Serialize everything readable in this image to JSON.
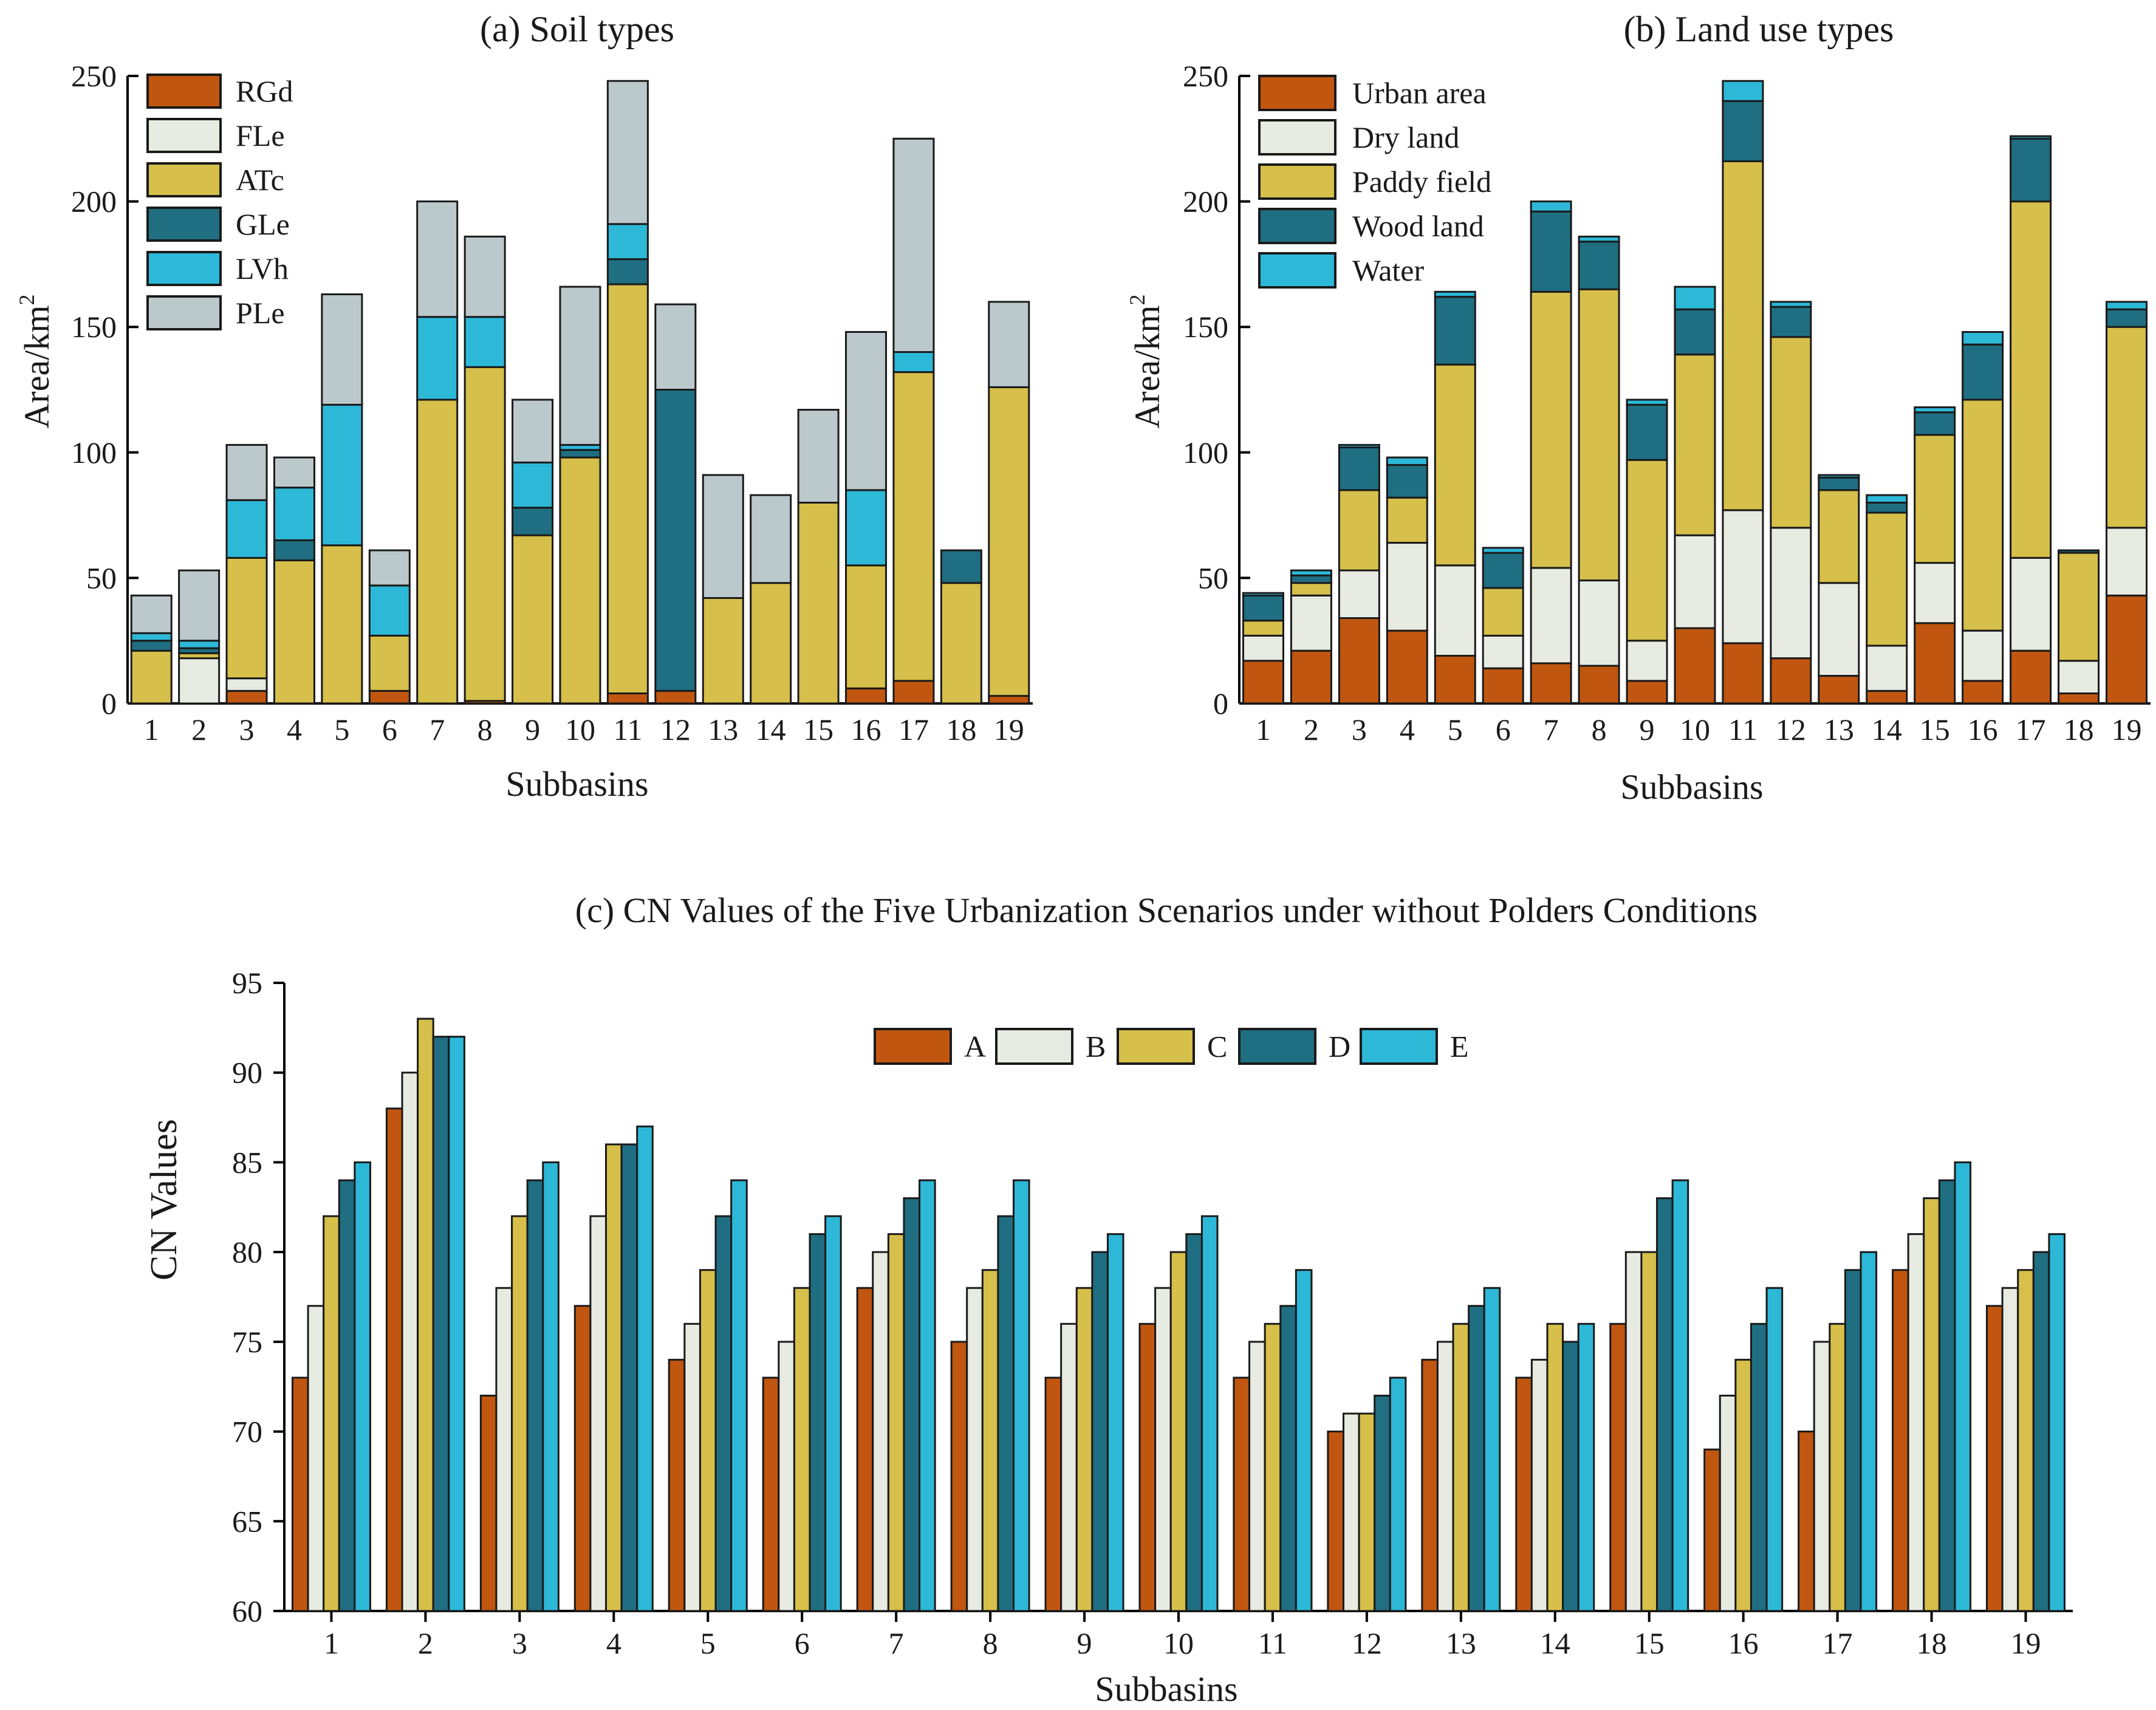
{
  "colors": {
    "orange": "#C0560F",
    "light": "#E8EBE1",
    "yellow": "#D6BF4A",
    "teal": "#1F6E82",
    "cyan": "#2DB8D8",
    "grey": "#BCC9CC"
  },
  "chart_data": [
    {
      "type": "bar",
      "stacked": true,
      "title": "(a) Soil types",
      "xlabel": "Subbasins",
      "ylabel": "Area/km",
      "ylabel_sup": "2",
      "ylim": [
        0,
        250
      ],
      "yticks": [
        "0",
        "50",
        "100",
        "150",
        "200",
        "250"
      ],
      "legend_position": "top-left",
      "categories": [
        "1",
        "2",
        "3",
        "4",
        "5",
        "6",
        "7",
        "8",
        "9",
        "10",
        "11",
        "12",
        "13",
        "14",
        "15",
        "16",
        "17",
        "18",
        "19"
      ],
      "series": [
        {
          "name": "RGd",
          "color": "#C0560F",
          "values": [
            0,
            0,
            5,
            0,
            0,
            5,
            0,
            1,
            0,
            0,
            4,
            5,
            0,
            0,
            0,
            6,
            9,
            0,
            3
          ]
        },
        {
          "name": "FLe",
          "color": "#E8EBE1",
          "values": [
            0,
            18,
            5,
            0,
            0,
            0,
            0,
            0,
            0,
            0,
            0,
            0,
            0,
            0,
            0,
            0,
            0,
            0,
            0
          ]
        },
        {
          "name": "ATc",
          "color": "#D6BF4A",
          "values": [
            21,
            2,
            48,
            57,
            63,
            22,
            121,
            133,
            67,
            98,
            163,
            0,
            42,
            48,
            80,
            49,
            123,
            48,
            123
          ]
        },
        {
          "name": "GLe",
          "color": "#1F6E82",
          "values": [
            4,
            2,
            0,
            8,
            0,
            0,
            0,
            0,
            11,
            3,
            10,
            120,
            0,
            0,
            0,
            0,
            0,
            13,
            0
          ]
        },
        {
          "name": "LVh",
          "color": "#2DB8D8",
          "values": [
            3,
            3,
            23,
            21,
            56,
            20,
            33,
            20,
            18,
            2,
            14,
            0,
            0,
            0,
            0,
            30,
            8,
            0,
            0
          ]
        },
        {
          "name": "PLe",
          "color": "#BCC9CC",
          "values": [
            15,
            28,
            22,
            12,
            44,
            14,
            46,
            32,
            25,
            63,
            57,
            34,
            49,
            35,
            37,
            63,
            85,
            0,
            34
          ]
        }
      ]
    },
    {
      "type": "bar",
      "stacked": true,
      "title": "(b) Land use types",
      "xlabel": "Subbasins",
      "ylabel": "Area/km",
      "ylabel_sup": "2",
      "ylim": [
        0,
        250
      ],
      "yticks": [
        "0",
        "50",
        "100",
        "150",
        "200",
        "250"
      ],
      "legend_position": "top-left",
      "categories": [
        "1",
        "2",
        "3",
        "4",
        "5",
        "6",
        "7",
        "8",
        "9",
        "10",
        "11",
        "12",
        "13",
        "14",
        "15",
        "16",
        "17",
        "18",
        "19"
      ],
      "series": [
        {
          "name": "Urban area",
          "color": "#C0560F",
          "values": [
            17,
            21,
            34,
            29,
            19,
            14,
            16,
            15,
            9,
            30,
            24,
            18,
            11,
            5,
            32,
            9,
            21,
            4,
            43
          ]
        },
        {
          "name": "Dry land",
          "color": "#E8EBE1",
          "values": [
            10,
            22,
            19,
            35,
            36,
            13,
            38,
            34,
            16,
            37,
            53,
            52,
            37,
            18,
            24,
            20,
            37,
            13,
            27
          ]
        },
        {
          "name": "Paddy field",
          "color": "#D6BF4A",
          "values": [
            6,
            5,
            32,
            18,
            80,
            19,
            110,
            116,
            72,
            72,
            139,
            76,
            37,
            53,
            51,
            92,
            142,
            43,
            80
          ]
        },
        {
          "name": "Wood land",
          "color": "#1F6E82",
          "values": [
            10,
            3,
            17,
            13,
            27,
            14,
            32,
            19,
            22,
            18,
            24,
            12,
            5,
            4,
            9,
            22,
            25,
            1,
            7
          ]
        },
        {
          "name": "Water",
          "color": "#2DB8D8",
          "values": [
            1,
            2,
            1,
            3,
            2,
            2,
            4,
            2,
            2,
            9,
            8,
            2,
            1,
            3,
            2,
            5,
            1,
            0,
            3
          ]
        }
      ]
    },
    {
      "type": "bar",
      "stacked": false,
      "title": "(c) CN Values of the Five Urbanization Scenarios under without Polders Conditions",
      "xlabel": "Subbasins",
      "ylabel": "CN Values",
      "ylim": [
        60,
        95
      ],
      "yticks": [
        "60",
        "65",
        "70",
        "75",
        "80",
        "85",
        "90",
        "95"
      ],
      "legend_position": "top-center",
      "categories": [
        "1",
        "2",
        "3",
        "4",
        "5",
        "6",
        "7",
        "8",
        "9",
        "10",
        "11",
        "12",
        "13",
        "14",
        "15",
        "16",
        "17",
        "18",
        "19"
      ],
      "series": [
        {
          "name": "A",
          "color": "#C0560F",
          "values": [
            73,
            88,
            72,
            77,
            74,
            73,
            78,
            75,
            73,
            76,
            73,
            70,
            74,
            73,
            76,
            69,
            70,
            79,
            77
          ]
        },
        {
          "name": "B",
          "color": "#E8EBE1",
          "values": [
            77,
            90,
            78,
            82,
            76,
            75,
            80,
            78,
            76,
            78,
            75,
            71,
            75,
            74,
            80,
            72,
            75,
            81,
            78
          ]
        },
        {
          "name": "C",
          "color": "#D6BF4A",
          "values": [
            82,
            93,
            82,
            86,
            79,
            78,
            81,
            79,
            78,
            80,
            76,
            71,
            76,
            76,
            80,
            74,
            76,
            83,
            79
          ]
        },
        {
          "name": "D",
          "color": "#1F6E82",
          "values": [
            84,
            92,
            84,
            86,
            82,
            81,
            83,
            82,
            80,
            81,
            77,
            72,
            77,
            75,
            83,
            76,
            79,
            84,
            80
          ]
        },
        {
          "name": "E",
          "color": "#2DB8D8",
          "values": [
            85,
            92,
            85,
            87,
            84,
            82,
            84,
            84,
            81,
            82,
            79,
            73,
            78,
            76,
            84,
            78,
            80,
            85,
            81
          ]
        }
      ]
    }
  ]
}
